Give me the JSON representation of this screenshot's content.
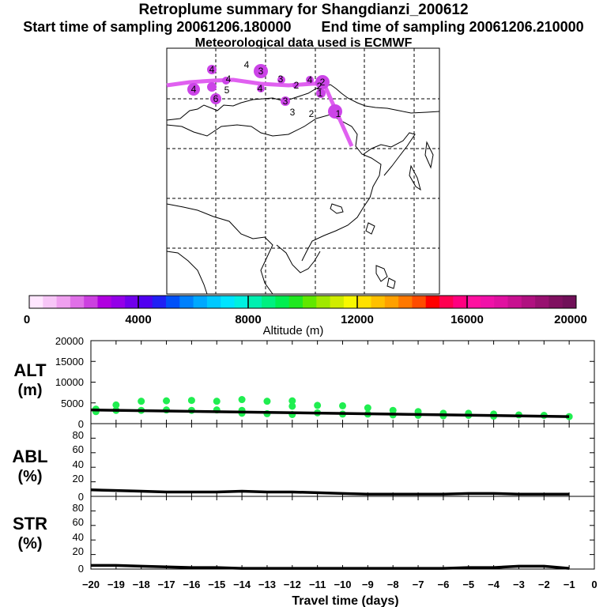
{
  "header": {
    "title": "Retroplume summary for Shangdianzi_200612",
    "start_label": "Start time of sampling 20061206.180000",
    "end_label": "End time of sampling 20061206.210000",
    "met_label": "Meteorological data used is ECMWF"
  },
  "colorbar": {
    "label": "Altitude (m)",
    "ticks": [
      "0",
      "4000",
      "8000",
      "12000",
      "16000",
      "20000"
    ],
    "colors": [
      "#ffe6ff",
      "#f7c6f7",
      "#efa0ef",
      "#e070e8",
      "#cc40e0",
      "#b000e0",
      "#9400e8",
      "#7000ec",
      "#5000f0",
      "#2020f4",
      "#0050f8",
      "#0080fc",
      "#00a8ff",
      "#00c8ff",
      "#00e4ff",
      "#00f0e0",
      "#00f0b0",
      "#00f080",
      "#00ee50",
      "#20e820",
      "#60e800",
      "#a0e800",
      "#d0ec00",
      "#f8f800",
      "#ffe000",
      "#ffc000",
      "#ffa000",
      "#ff7800",
      "#ff4c00",
      "#ff0000",
      "#ff0050",
      "#ff0080",
      "#ff10a0",
      "#f010a8",
      "#e010a0",
      "#c81090",
      "#b01080",
      "#981070",
      "#801060",
      "#701058"
    ]
  },
  "map": {
    "labels": [
      "4",
      "4",
      "3",
      "3",
      "4",
      "2",
      "1",
      "2",
      "3",
      "2",
      "1",
      "4",
      "4",
      "5",
      "6",
      "4",
      "3",
      "2"
    ]
  },
  "chart_data": [
    {
      "type": "scatter",
      "panel": "ALT",
      "ylabel": "ALT\n(m)",
      "ylabel_line1": "ALT",
      "ylabel_line2": "(m)",
      "xlim": [
        -20,
        0
      ],
      "ylim": [
        0,
        20000
      ],
      "yticks": [
        "20000",
        "15000",
        "10000",
        "5000",
        "0"
      ],
      "mean_line": {
        "x": [
          -20,
          -1
        ],
        "y": [
          3300,
          1700
        ]
      },
      "points": [
        {
          "x": -19.8,
          "y": 3500
        },
        {
          "x": -19.8,
          "y": 2900
        },
        {
          "x": -19.0,
          "y": 4500
        },
        {
          "x": -19.0,
          "y": 3200
        },
        {
          "x": -18.0,
          "y": 5400
        },
        {
          "x": -18.0,
          "y": 3200
        },
        {
          "x": -17.0,
          "y": 5500
        },
        {
          "x": -17.0,
          "y": 3300
        },
        {
          "x": -16.0,
          "y": 5600
        },
        {
          "x": -16.0,
          "y": 3200
        },
        {
          "x": -15.0,
          "y": 5400
        },
        {
          "x": -15.0,
          "y": 3300
        },
        {
          "x": -14.0,
          "y": 5800
        },
        {
          "x": -14.0,
          "y": 3200
        },
        {
          "x": -14.0,
          "y": 2500
        },
        {
          "x": -13.0,
          "y": 5400
        },
        {
          "x": -13.0,
          "y": 2400
        },
        {
          "x": -12.0,
          "y": 5500
        },
        {
          "x": -12.0,
          "y": 4200
        },
        {
          "x": -12.0,
          "y": 2200
        },
        {
          "x": -11.0,
          "y": 4400
        },
        {
          "x": -11.0,
          "y": 2600
        },
        {
          "x": -10.0,
          "y": 4300
        },
        {
          "x": -10.0,
          "y": 2300
        },
        {
          "x": -9.0,
          "y": 3800
        },
        {
          "x": -9.0,
          "y": 2300
        },
        {
          "x": -8.0,
          "y": 3200
        },
        {
          "x": -8.0,
          "y": 2100
        },
        {
          "x": -7.0,
          "y": 2900
        },
        {
          "x": -7.0,
          "y": 2000
        },
        {
          "x": -6.0,
          "y": 2500
        },
        {
          "x": -6.0,
          "y": 1900
        },
        {
          "x": -5.0,
          "y": 2500
        },
        {
          "x": -5.0,
          "y": 2000
        },
        {
          "x": -4.0,
          "y": 2300
        },
        {
          "x": -4.0,
          "y": 1800
        },
        {
          "x": -3.0,
          "y": 2100
        },
        {
          "x": -2.0,
          "y": 2000
        },
        {
          "x": -1.0,
          "y": 1700
        }
      ]
    },
    {
      "type": "line",
      "panel": "ABL",
      "ylabel": "ABL\n(%)",
      "ylabel_line1": "ABL",
      "ylabel_line2": "(%)",
      "xlim": [
        -20,
        0
      ],
      "ylim": [
        0,
        100
      ],
      "yticks": [
        "80",
        "60",
        "40",
        "20",
        "0"
      ],
      "x": [
        -20,
        -19,
        -18,
        -17,
        -16,
        -15,
        -14,
        -13,
        -12,
        -11,
        -10,
        -9,
        -8,
        -7,
        -6,
        -5,
        -4,
        -3,
        -2,
        -1
      ],
      "values": [
        9,
        8,
        7,
        6,
        6,
        6,
        7,
        6,
        6,
        5,
        4,
        3,
        3,
        3,
        3,
        4,
        4,
        3,
        3,
        3
      ]
    },
    {
      "type": "line",
      "panel": "STR",
      "ylabel": "STR\n(%)",
      "ylabel_line1": "STR",
      "ylabel_line2": "(%)",
      "xlim": [
        -20,
        0
      ],
      "ylim": [
        0,
        100
      ],
      "yticks": [
        "80",
        "60",
        "40",
        "20",
        "0"
      ],
      "x": [
        -20,
        -19,
        -18,
        -17,
        -16,
        -15,
        -14,
        -13,
        -12,
        -11,
        -10,
        -9,
        -8,
        -7,
        -6,
        -5,
        -4,
        -3,
        -2,
        -1
      ],
      "values": [
        5,
        5,
        4,
        3,
        2,
        2,
        1,
        1,
        1,
        1,
        1,
        1,
        1,
        1,
        1,
        2,
        2,
        4,
        4,
        1
      ],
      "xticks": [
        "−20",
        "−19",
        "−18",
        "−17",
        "−16",
        "−15",
        "−14",
        "−13",
        "−12",
        "−11",
        "−10",
        "−9",
        "−8",
        "−7",
        "−6",
        "−5",
        "−4",
        "−3",
        "−2",
        "−1",
        "0"
      ],
      "xlabel": "Travel time (days)"
    }
  ]
}
